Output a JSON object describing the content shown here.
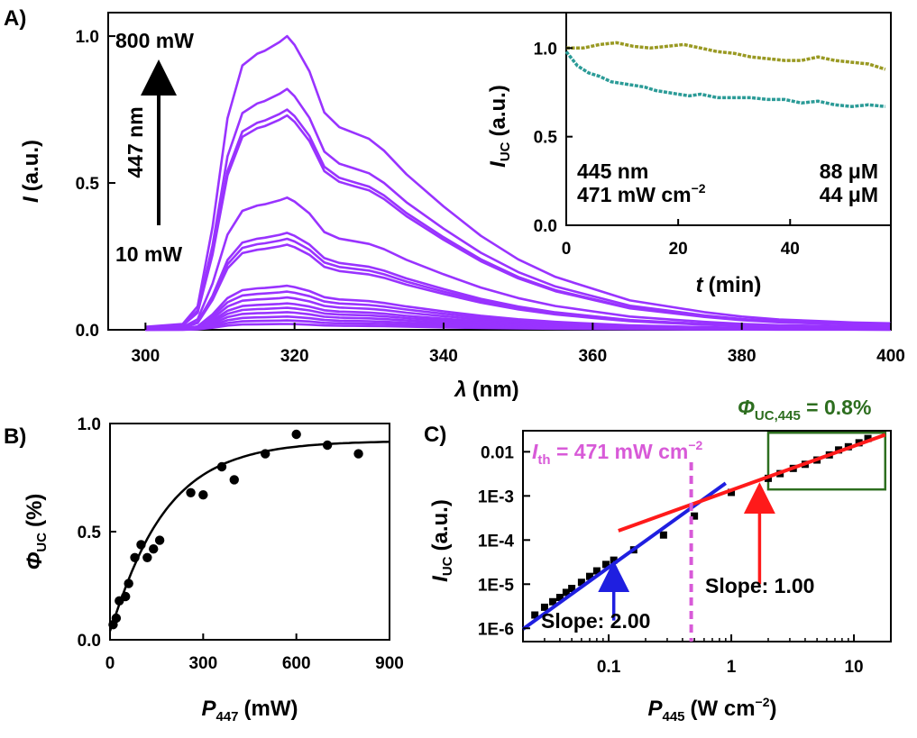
{
  "chart_data": [
    {
      "panel_label": "A)",
      "type": "line",
      "xlabel_symbol": "λ",
      "xlabel_unit": "(nm)",
      "ylabel_symbol": "I",
      "ylabel_unit": "(a.u.)",
      "xlim": [
        295,
        400
      ],
      "ylim": [
        0,
        1.08
      ],
      "xticks": [
        300,
        320,
        340,
        360,
        380,
        400
      ],
      "yticks": [
        "0.0",
        "0.5",
        "1.0"
      ],
      "color": "#9933ff",
      "annotations": {
        "top": "800 mW",
        "bottom": "10 mW",
        "arrow_label": "447 nm"
      },
      "x": [
        300,
        305,
        307,
        309,
        311,
        313,
        315,
        316,
        318,
        319,
        320,
        322,
        324,
        326,
        328,
        330,
        332,
        335,
        340,
        345,
        350,
        355,
        360,
        365,
        370,
        375,
        380,
        385,
        390,
        395,
        400
      ],
      "shape": [
        0.01,
        0.02,
        0.08,
        0.35,
        0.72,
        0.9,
        0.94,
        0.95,
        0.98,
        1.0,
        0.97,
        0.88,
        0.74,
        0.69,
        0.67,
        0.65,
        0.61,
        0.53,
        0.42,
        0.32,
        0.24,
        0.18,
        0.14,
        0.1,
        0.08,
        0.06,
        0.045,
        0.035,
        0.03,
        0.025,
        0.022
      ],
      "curve_peaks": [
        1.0,
        0.82,
        0.75,
        0.73,
        0.45,
        0.33,
        0.31,
        0.29,
        0.15,
        0.13,
        0.11,
        0.09,
        0.075,
        0.06,
        0.045,
        0.032,
        0.02
      ]
    },
    {
      "panel_label": "",
      "type": "line",
      "inset": true,
      "xlabel_symbol": "t",
      "xlabel_unit": "(min)",
      "ylabel_symbol": "I",
      "ylabel_sub": "UC",
      "ylabel_unit": "(a.u.)",
      "xlim": [
        0,
        58
      ],
      "ylim": [
        0,
        1.2
      ],
      "xticks": [
        "0",
        "20",
        "40"
      ],
      "yticks": [
        "0.0",
        "0.5",
        "1.0"
      ],
      "conditions": [
        "445 nm",
        "471 mW cm"
      ],
      "conditions_sup": "−2",
      "series": [
        {
          "name": "88 μM",
          "color": "#999922",
          "x": [
            0,
            3,
            6,
            9,
            12,
            15,
            18,
            21,
            24,
            27,
            30,
            33,
            36,
            39,
            42,
            45,
            48,
            51,
            54,
            57
          ],
          "values": [
            1.0,
            1.0,
            1.02,
            1.03,
            1.01,
            1.0,
            1.01,
            1.02,
            1.0,
            0.98,
            0.97,
            0.95,
            0.94,
            0.93,
            0.93,
            0.95,
            0.93,
            0.92,
            0.91,
            0.88
          ]
        },
        {
          "name": "44 μM",
          "color": "#2b9b97",
          "x": [
            0,
            2,
            4,
            6,
            8,
            10,
            12,
            14,
            16,
            18,
            20,
            22,
            24,
            27,
            30,
            33,
            36,
            39,
            42,
            45,
            48,
            51,
            54,
            57
          ],
          "values": [
            0.98,
            0.9,
            0.86,
            0.84,
            0.81,
            0.8,
            0.79,
            0.78,
            0.76,
            0.75,
            0.74,
            0.73,
            0.74,
            0.72,
            0.72,
            0.72,
            0.71,
            0.71,
            0.69,
            0.7,
            0.68,
            0.67,
            0.68,
            0.67
          ]
        }
      ]
    },
    {
      "panel_label": "B)",
      "type": "scatter",
      "xlabel_symbol": "P",
      "xlabel_sub": "447",
      "xlabel_unit": "(mW)",
      "ylabel_symbol": "Φ",
      "ylabel_sub": "UC",
      "ylabel_unit": "(%)",
      "xlim": [
        0,
        900
      ],
      "ylim": [
        0,
        1.0
      ],
      "xticks": [
        "0",
        "300",
        "600",
        "900"
      ],
      "yticks": [
        "0.0",
        "0.5",
        "1.0"
      ],
      "x": [
        10,
        20,
        30,
        50,
        60,
        80,
        100,
        120,
        140,
        160,
        260,
        300,
        360,
        400,
        500,
        600,
        700,
        800
      ],
      "values": [
        0.07,
        0.1,
        0.18,
        0.2,
        0.26,
        0.38,
        0.44,
        0.38,
        0.42,
        0.46,
        0.68,
        0.67,
        0.8,
        0.74,
        0.86,
        0.95,
        0.9,
        0.86
      ],
      "fit": {
        "model": "A*(1-exp(-x/x0))",
        "A": 0.92,
        "x0": 170
      }
    },
    {
      "panel_label": "C)",
      "type": "scatter",
      "log_x": true,
      "log_y": true,
      "xlabel_symbol": "P",
      "xlabel_sub": "445",
      "xlabel_unit": "(W cm",
      "xlabel_sup": "−2",
      "ylabel_symbol": "I",
      "ylabel_sub": "UC",
      "ylabel_unit": "(a.u.)",
      "xlim": [
        0.02,
        20
      ],
      "ylim": [
        5e-07,
        0.03
      ],
      "xticks": [
        "0.1",
        "1",
        "10"
      ],
      "yticks": [
        "1E-6",
        "1E-5",
        "1E-4",
        "1E-3",
        "0.01"
      ],
      "x": [
        0.025,
        0.03,
        0.035,
        0.04,
        0.045,
        0.05,
        0.06,
        0.07,
        0.08,
        0.095,
        0.11,
        0.16,
        0.28,
        0.5,
        1.0,
        2.0,
        2.5,
        3.2,
        4.0,
        5.0,
        6.3,
        7.5,
        9.0,
        11.0,
        13.0
      ],
      "values": [
        2e-06,
        3e-06,
        4e-06,
        5e-06,
        6.5e-06,
        8e-06,
        1.1e-05,
        1.5e-05,
        2e-05,
        2.8e-05,
        3.5e-05,
        6e-05,
        0.00013,
        0.00035,
        0.0012,
        0.0025,
        0.0032,
        0.0042,
        0.0052,
        0.0065,
        0.0085,
        0.011,
        0.013,
        0.016,
        0.02
      ],
      "fit_low": {
        "label": "Slope: 2.00",
        "color": "#1f1fe0",
        "slope": 2.0,
        "x_range": [
          0.02,
          0.9
        ],
        "x_ref": 0.1,
        "y_ref": 2.4e-05
      },
      "fit_high": {
        "label": "Slope: 1.00",
        "color": "#ff1a1a",
        "slope": 1.0,
        "x_range": [
          0.12,
          18
        ],
        "x_ref": 1.0,
        "y_ref": 0.00135
      },
      "threshold": {
        "symbol": "I",
        "sub": "th",
        "text": " = 471 mW cm",
        "sup": "−2",
        "x": 0.471,
        "color": "#d85ad8"
      },
      "efficiency": {
        "symbol": "Φ",
        "sub": "UC,445",
        "text": " = 0.8%",
        "color": "#2d6e1f"
      }
    }
  ]
}
